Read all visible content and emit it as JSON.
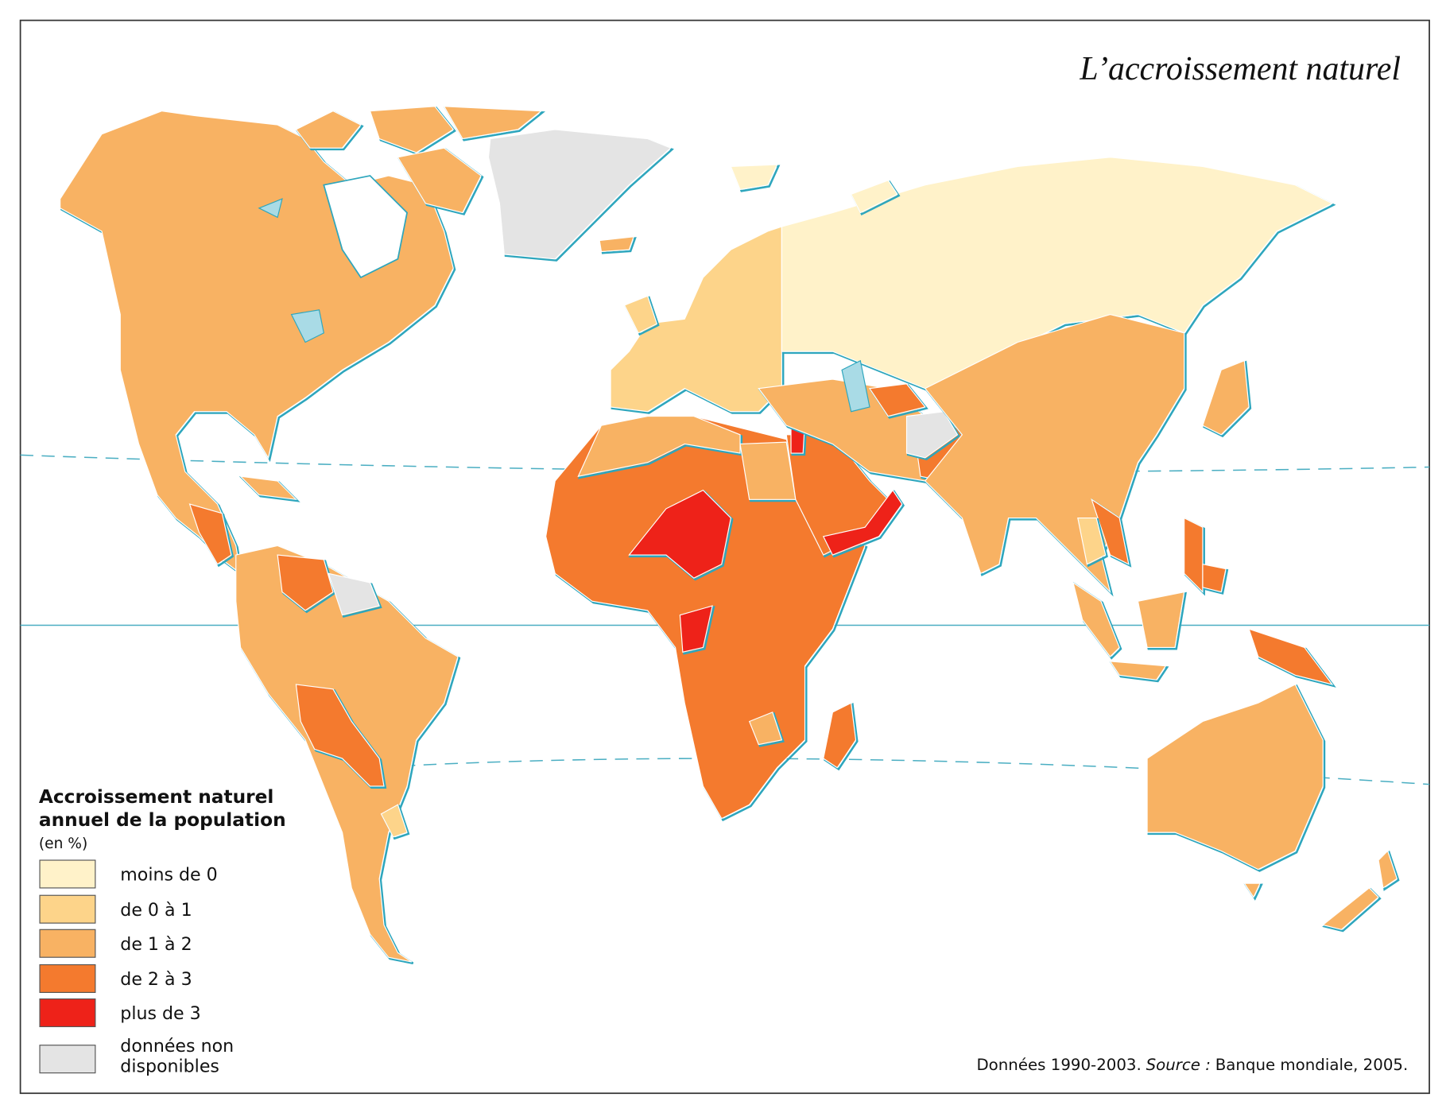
{
  "title": "L’accroissement naturel",
  "legend": {
    "title_lines": [
      "Accroissement naturel",
      "annuel de la population",
      "(en %)"
    ],
    "items": [
      {
        "label": [
          "moins de 0"
        ],
        "color": "#fff2c9"
      },
      {
        "label": [
          "de 0 à 1"
        ],
        "color": "#fdd48a"
      },
      {
        "label": [
          "de 1 à 2"
        ],
        "color": "#f8b263"
      },
      {
        "label": [
          "de 2 à 3"
        ],
        "color": "#f47a2e"
      },
      {
        "label": [
          "plus de 3"
        ],
        "color": "#ee2219"
      },
      {
        "label": [
          "données non",
          "disponibles"
        ],
        "color": "#e4e4e4"
      }
    ]
  },
  "source": {
    "prefix": "Données 1990-2003.",
    "label": "Source :",
    "text": "Banque mondiale, 2005."
  }
}
